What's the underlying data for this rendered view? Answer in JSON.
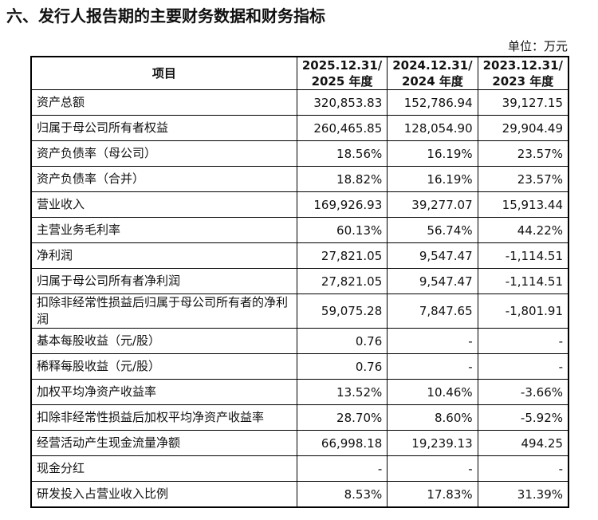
{
  "header": {
    "title": "六、发行人报告期的主要财务数据和财务指标",
    "unit": "单位：万元"
  },
  "table": {
    "columns": [
      [
        "项目"
      ],
      [
        "2025.12.31/",
        "2025 年度"
      ],
      [
        "2024.12.31/",
        "2024 年度"
      ],
      [
        "2023.12.31/",
        "2023 年度"
      ]
    ],
    "rows": [
      [
        "资产总额",
        "320,853.83",
        "152,786.94",
        "39,127.15"
      ],
      [
        "归属于母公司所有者权益",
        "260,465.85",
        "128,054.90",
        "29,904.49"
      ],
      [
        "资产负债率（母公司）",
        "18.56%",
        "16.19%",
        "23.57%"
      ],
      [
        "资产负债率（合并）",
        "18.82%",
        "16.19%",
        "23.57%"
      ],
      [
        "营业收入",
        "169,926.93",
        "39,277.07",
        "15,913.44"
      ],
      [
        "主营业务毛利率",
        "60.13%",
        "56.74%",
        "44.22%"
      ],
      [
        "净利润",
        "27,821.05",
        "9,547.47",
        "-1,114.51"
      ],
      [
        "归属于母公司所有者净利润",
        "27,821.05",
        "9,547.47",
        "-1,114.51"
      ],
      [
        "扣除非经常性损益后归属于母公司所有者的净利润",
        "59,075.28",
        "7,847.65",
        "-1,801.91"
      ],
      [
        "基本每股收益（元/股）",
        "0.76",
        "-",
        "-"
      ],
      [
        "稀释每股收益（元/股）",
        "0.76",
        "-",
        "-"
      ],
      [
        "加权平均净资产收益率",
        "13.52%",
        "10.46%",
        "-3.66%"
      ],
      [
        "扣除非经常性损益后加权平均净资产收益率",
        "28.70%",
        "8.60%",
        "-5.92%"
      ],
      [
        "经营活动产生现金流量净额",
        "66,998.18",
        "19,239.13",
        "494.25"
      ],
      [
        "现金分红",
        "-",
        "-",
        "-"
      ],
      [
        "研发投入占营业收入比例",
        "8.53%",
        "17.83%",
        "31.39%"
      ]
    ]
  }
}
